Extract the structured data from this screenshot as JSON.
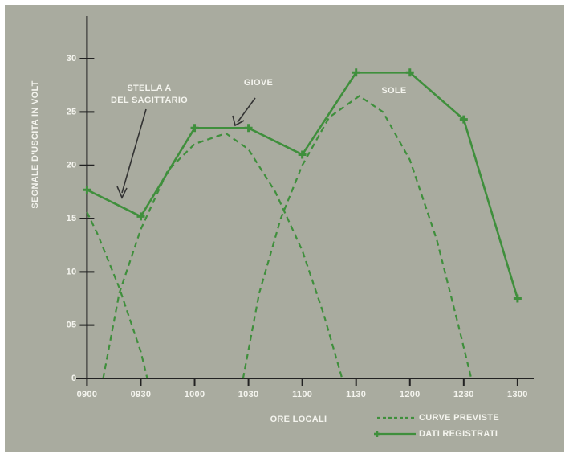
{
  "chart_data": {
    "type": "line",
    "y_label": "SEGNALE D'USCITA IN VOLT",
    "x_label": "ORE LOCALI",
    "annotations": [
      {
        "text": [
          "STELLA A",
          "DEL SAGITTARIO"
        ]
      },
      {
        "text": [
          "GIOVE"
        ]
      },
      {
        "text": [
          "SOLE"
        ]
      }
    ],
    "xlim": [
      8.9,
      13.15
    ],
    "xticks": [
      {
        "value": 9,
        "label": "0900"
      },
      {
        "value": 9.5,
        "label": "0930"
      },
      {
        "value": 10,
        "label": "1000"
      },
      {
        "value": 10.5,
        "label": "1030"
      },
      {
        "value": 11,
        "label": "1100"
      },
      {
        "value": 11.5,
        "label": "1130"
      },
      {
        "value": 12,
        "label": "1200"
      },
      {
        "value": 12.5,
        "label": "1230"
      },
      {
        "value": 13,
        "label": "1300"
      }
    ],
    "ylim": [
      0,
      34
    ],
    "yticks": [
      0,
      {
        "value": 5,
        "label": "05"
      },
      10,
      15,
      20,
      25,
      30
    ],
    "series": [
      {
        "name": "CURVE PREVISTE",
        "color": "#3f8f3c",
        "dashed": true,
        "x": [
          9.0,
          9.1,
          9.2,
          9.3,
          9.4,
          9.5,
          9.56
        ],
        "values": [
          15.6,
          13.5,
          11,
          8.5,
          5.5,
          2.5,
          0
        ]
      },
      {
        "color": "#3f8f3c",
        "dashed": true,
        "x": [
          9.15,
          9.3,
          9.5,
          9.75,
          10.0,
          10.29,
          10.5,
          10.75,
          11.0,
          11.2,
          11.37
        ],
        "values": [
          0,
          8,
          14,
          19.5,
          22,
          23,
          21.5,
          17.5,
          12,
          6,
          0
        ]
      },
      {
        "color": "#3f8f3c",
        "dashed": true,
        "x": [
          10.45,
          10.6,
          10.8,
          11.0,
          11.25,
          11.53,
          11.75,
          12.0,
          12.25,
          12.45,
          12.57
        ],
        "values": [
          0,
          8,
          15,
          20,
          24.5,
          26.5,
          25,
          20.5,
          13,
          5,
          0
        ]
      },
      {
        "name": "DATI REGISTRATI",
        "color": "#3f8f3c",
        "dashed": false,
        "markers": true,
        "x": [
          9,
          9.5,
          10,
          10.5,
          11,
          11.5,
          12,
          12.5,
          13
        ],
        "values": [
          17.7,
          15.2,
          23.5,
          23.5,
          21,
          28.7,
          28.7,
          24.3,
          7.5
        ]
      }
    ]
  }
}
